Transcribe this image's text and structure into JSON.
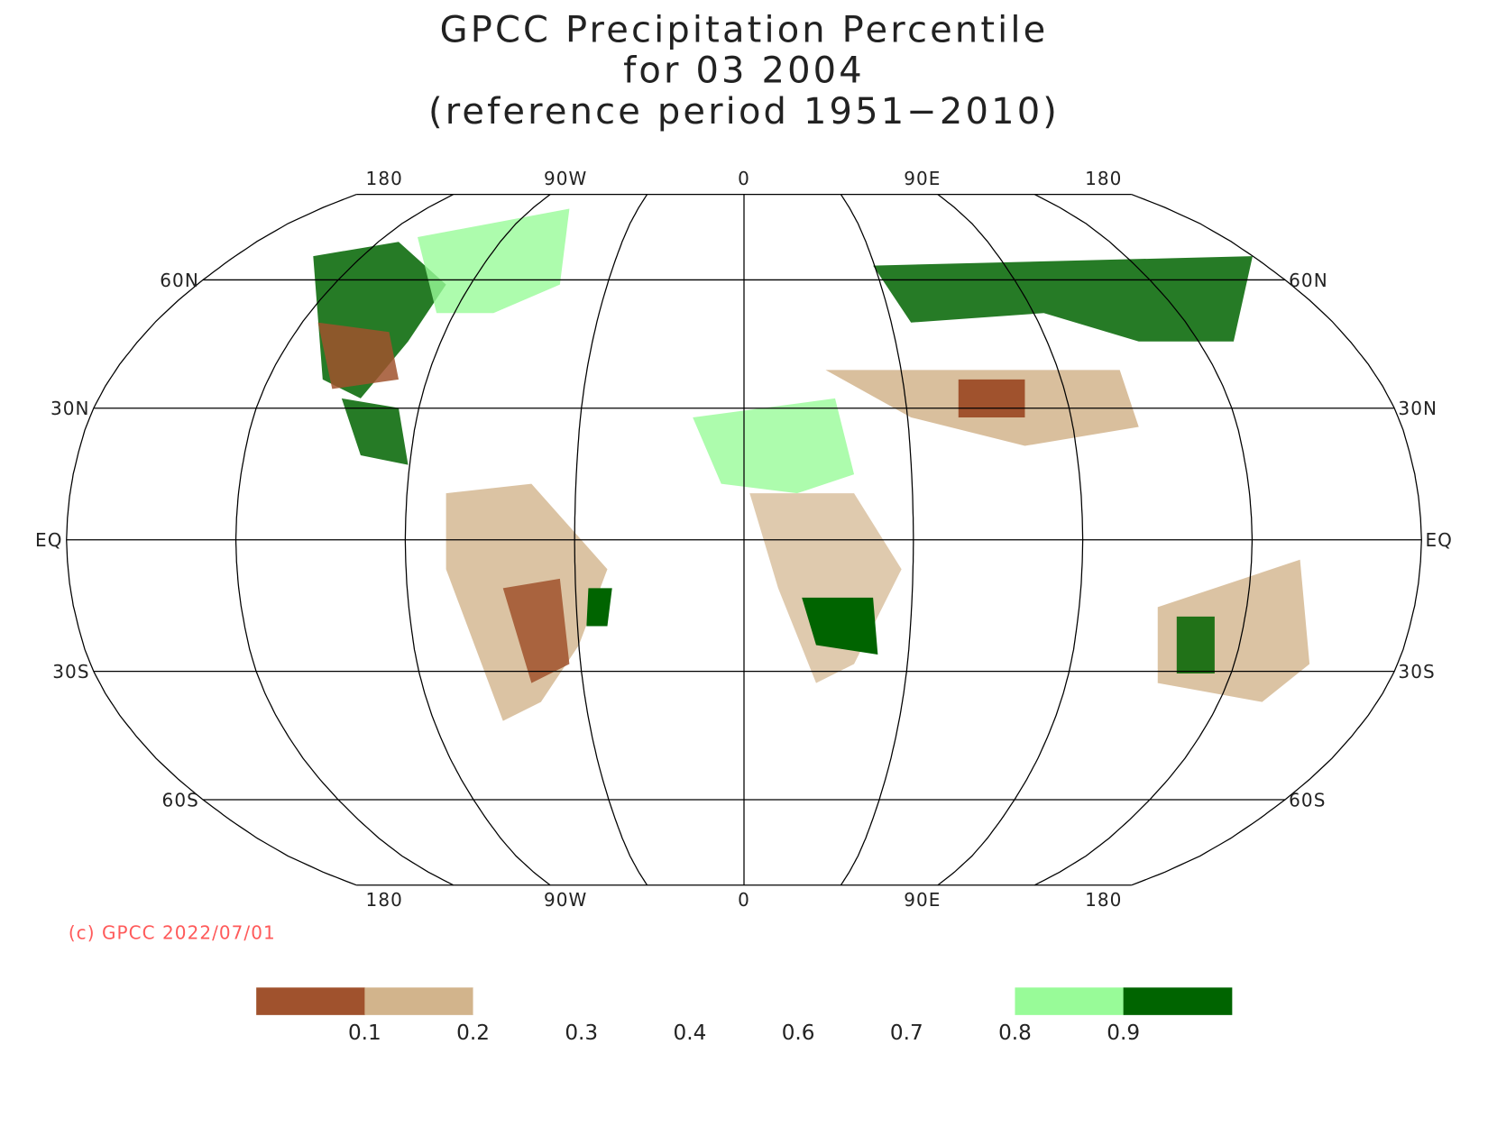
{
  "title": [
    "GPCC Precipitation Percentile",
    "for 03 2004",
    "(reference period 1951−2010)"
  ],
  "lon_labels": [
    "180",
    "90W",
    "0",
    "90E",
    "180"
  ],
  "lat_labels": [
    "60N",
    "30N",
    "EQ",
    "30S",
    "60S"
  ],
  "copyright": "(c) GPCC 2022/07/01",
  "colorbar": {
    "colors": [
      "#a0522d",
      "#d2b48c",
      "#ffffff",
      "#ffffff",
      "#ffffff",
      "#ffffff",
      "#ffffff",
      "#98fb98",
      "#006400"
    ],
    "ticks": [
      0.1,
      0.2,
      0.3,
      0.4,
      0.6,
      0.7,
      0.8,
      0.9
    ]
  }
}
